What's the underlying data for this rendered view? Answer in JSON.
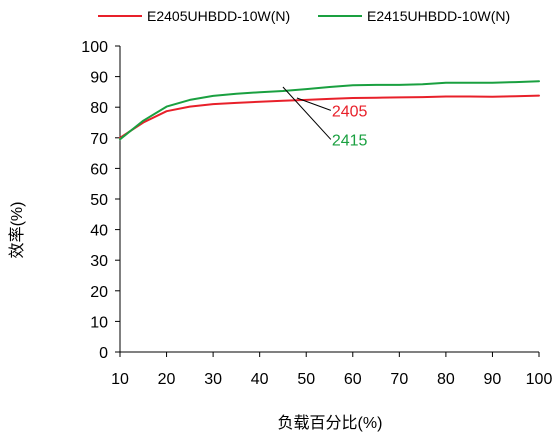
{
  "chart_data": {
    "type": "line",
    "xlabel": "负载百分比(%)",
    "ylabel": "效率(%)",
    "xlim": [
      10,
      100
    ],
    "ylim": [
      0,
      100
    ],
    "xticks": [
      10,
      20,
      30,
      40,
      50,
      60,
      70,
      80,
      90,
      100
    ],
    "yticks": [
      0,
      10,
      20,
      30,
      40,
      50,
      60,
      70,
      80,
      90,
      100
    ],
    "grid": false,
    "legend_position": "top",
    "x": [
      10,
      15,
      20,
      25,
      30,
      35,
      40,
      45,
      50,
      55,
      60,
      65,
      70,
      75,
      80,
      85,
      90,
      95,
      100
    ],
    "series": [
      {
        "name": "E2405UHBDD-10W(N)",
        "color": "#e8202a",
        "values": [
          70,
          75,
          78.7,
          80.2,
          81,
          81.4,
          81.8,
          82.1,
          82.4,
          82.7,
          83,
          83.1,
          83.2,
          83.3,
          83.5,
          83.5,
          83.4,
          83.6,
          83.8
        ]
      },
      {
        "name": "E2415UHBDD-10W(N)",
        "color": "#1aa040",
        "values": [
          69.5,
          75.6,
          80.2,
          82.4,
          83.7,
          84.4,
          84.9,
          85.3,
          85.9,
          86.6,
          87.2,
          87.3,
          87.3,
          87.5,
          88,
          88,
          88,
          88.2,
          88.5
        ]
      }
    ],
    "annotations": [
      {
        "text": "2405",
        "color": "#e8202a",
        "x": 55.5,
        "y": 77,
        "pointer_to": [
          48,
          83
        ]
      },
      {
        "text": "2415",
        "color": "#1aa040",
        "x": 55.5,
        "y": 67.5,
        "pointer_to": [
          45,
          86.6
        ]
      }
    ]
  }
}
